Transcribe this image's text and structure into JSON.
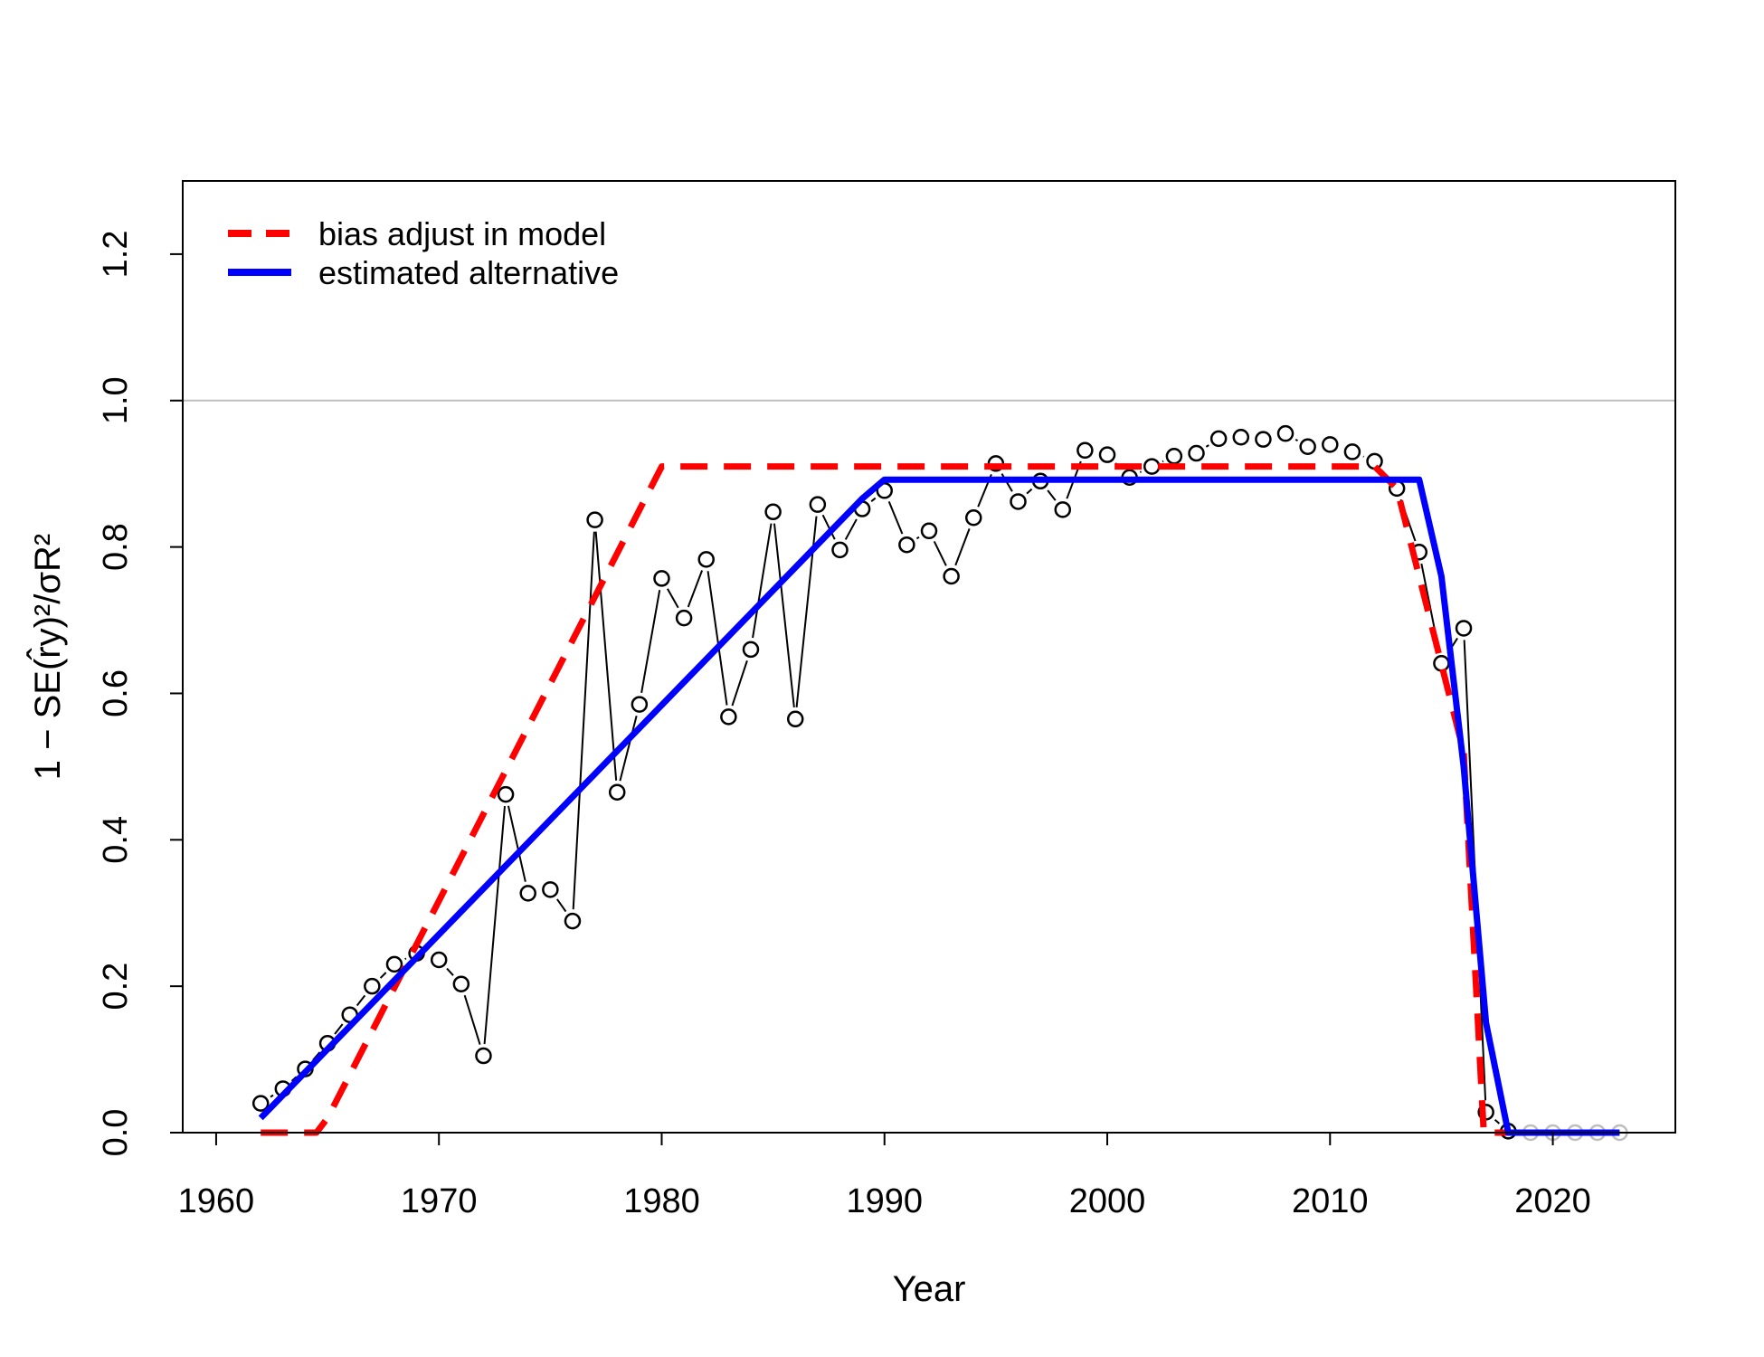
{
  "chart_data": {
    "type": "line",
    "xlabel": "Year",
    "ylabel": "1 − SE(r̂y)²/σR²",
    "xlim": [
      1958.5,
      2025.5
    ],
    "ylim": [
      0,
      1.3
    ],
    "x_ticks": [
      1960,
      1970,
      1980,
      1990,
      2000,
      2010,
      2020
    ],
    "x_tick_labels": [
      "1960",
      "1970",
      "1980",
      "1990",
      "2000",
      "2010",
      "2020"
    ],
    "y_ticks": [
      0.0,
      0.2,
      0.4,
      0.6,
      0.8,
      1.0,
      1.2
    ],
    "y_tick_labels": [
      "0.0",
      "0.2",
      "0.4",
      "0.6",
      "0.8",
      "1.0",
      "1.2"
    ],
    "reference_line": {
      "y": 1.0,
      "color": "#bebebe"
    },
    "grid": false,
    "legend_position": "top-left",
    "observed": {
      "color": "#000000",
      "x": [
        1962,
        1963,
        1964,
        1965,
        1966,
        1967,
        1968,
        1969,
        1970,
        1971,
        1972,
        1973,
        1974,
        1975,
        1976,
        1977,
        1978,
        1979,
        1980,
        1981,
        1982,
        1983,
        1984,
        1985,
        1986,
        1987,
        1988,
        1989,
        1990,
        1991,
        1992,
        1993,
        1994,
        1995,
        1996,
        1997,
        1998,
        1999,
        2000,
        2001,
        2002,
        2003,
        2004,
        2005,
        2006,
        2007,
        2008,
        2009,
        2010,
        2011,
        2012,
        2013,
        2014,
        2015,
        2016,
        2017,
        2018
      ],
      "y": [
        0.04,
        0.06,
        0.087,
        0.122,
        0.161,
        0.2,
        0.23,
        0.245,
        0.236,
        0.203,
        0.105,
        0.462,
        0.327,
        0.332,
        0.289,
        0.837,
        0.465,
        0.585,
        0.757,
        0.703,
        0.783,
        0.568,
        0.66,
        0.848,
        0.565,
        0.858,
        0.796,
        0.852,
        0.877,
        0.803,
        0.822,
        0.76,
        0.84,
        0.914,
        0.862,
        0.89,
        0.851,
        0.932,
        0.926,
        0.895,
        0.91,
        0.924,
        0.928,
        0.948,
        0.95,
        0.947,
        0.955,
        0.937,
        0.94,
        0.93,
        0.917,
        0.88,
        0.793,
        0.641,
        0.689,
        0.028,
        0.002
      ]
    },
    "projected": {
      "color": "#bebebe",
      "x": [
        2019,
        2020,
        2021,
        2022,
        2023
      ],
      "y": [
        0,
        0,
        0,
        0,
        0
      ]
    },
    "series": [
      {
        "name": "bias adjust in model",
        "color": "#ff0000",
        "style": "dashed",
        "x": [
          1962,
          1964.5,
          1965,
          1980,
          2012,
          2013,
          2016,
          2016.9,
          2017,
          2023
        ],
        "y": [
          0,
          0,
          0.02,
          0.91,
          0.91,
          0.88,
          0.52,
          0,
          0,
          0
        ]
      },
      {
        "name": "estimated alternative",
        "color": "#0000ff",
        "style": "solid",
        "x": [
          1962,
          1989,
          1990,
          2014,
          2015,
          2016,
          2017,
          2018,
          2023
        ],
        "y": [
          0.02,
          0.866,
          0.892,
          0.892,
          0.76,
          0.5,
          0.15,
          0,
          0
        ]
      }
    ]
  }
}
